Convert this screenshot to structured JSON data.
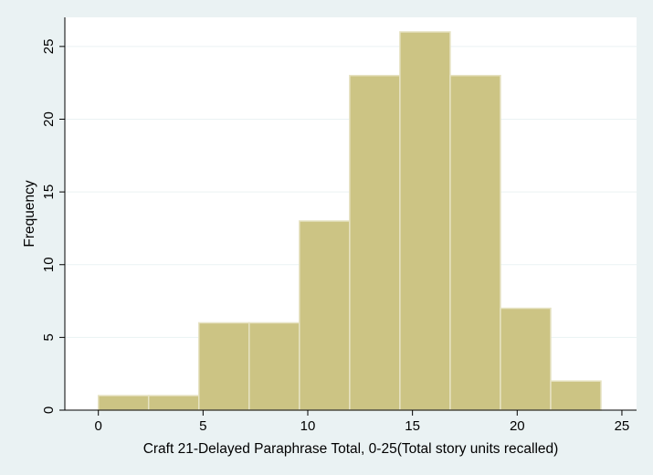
{
  "chart_data": {
    "type": "bar",
    "subtype": "histogram",
    "xlabel": "Craft 21-Delayed Paraphrase Total, 0-25(Total story units recalled)",
    "ylabel": "Frequency",
    "bins": [
      {
        "start": 0.0,
        "end": 2.4,
        "value": 1
      },
      {
        "start": 2.4,
        "end": 4.8,
        "value": 1
      },
      {
        "start": 4.8,
        "end": 7.2,
        "value": 6
      },
      {
        "start": 7.2,
        "end": 9.6,
        "value": 6
      },
      {
        "start": 9.6,
        "end": 12.0,
        "value": 13
      },
      {
        "start": 12.0,
        "end": 14.4,
        "value": 23
      },
      {
        "start": 14.4,
        "end": 16.8,
        "value": 26
      },
      {
        "start": 16.8,
        "end": 19.2,
        "value": 23
      },
      {
        "start": 19.2,
        "end": 21.6,
        "value": 7
      },
      {
        "start": 21.6,
        "end": 24.0,
        "value": 2
      }
    ],
    "xlim": [
      -1.6,
      25.7
    ],
    "ylim": [
      0,
      27
    ],
    "xticks": [
      0,
      5,
      10,
      15,
      20,
      25
    ],
    "yticks": [
      0,
      5,
      10,
      15,
      20,
      25
    ],
    "grid": "horizontal",
    "bar_color": "#ccc484",
    "bar_edge_color": "#e6e2c2",
    "plot_background": "#ffffff",
    "page_background": "#eaf2f3",
    "grid_color": "#eaf2f3"
  }
}
